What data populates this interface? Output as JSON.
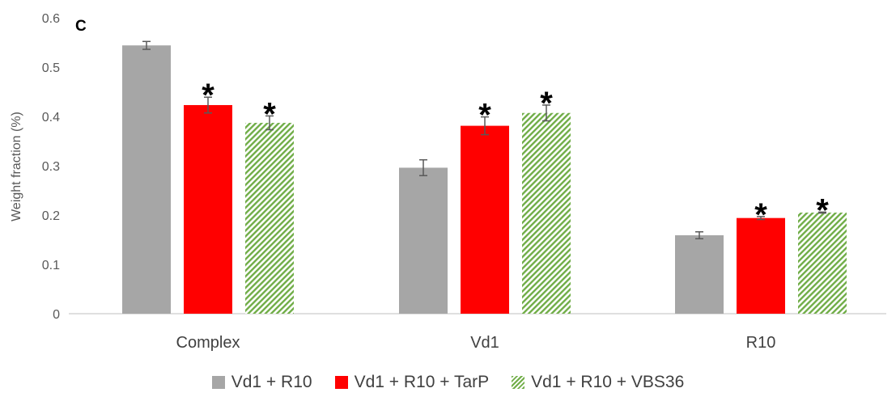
{
  "chart_data": {
    "type": "bar",
    "panel_label": "C",
    "ylabel": "Weight fraction (%)",
    "xlabel": "",
    "ylim": [
      0,
      0.6
    ],
    "yticks": [
      "0",
      "0.1",
      "0.2",
      "0.3",
      "0.4",
      "0.5",
      "0.6"
    ],
    "categories": [
      "Complex",
      "Vd1",
      "R10"
    ],
    "series": [
      {
        "name": "Vd1 + R10",
        "color": "#a6a6a6",
        "pattern": "solid",
        "values": [
          0.544,
          0.296,
          0.159
        ],
        "errors": [
          0.008,
          0.016,
          0.007
        ],
        "significant": [
          false,
          false,
          false
        ]
      },
      {
        "name": "Vd1 + R10 + TarP",
        "color": "#ff0000",
        "pattern": "solid",
        "values": [
          0.423,
          0.381,
          0.194
        ],
        "errors": [
          0.016,
          0.018,
          0.003
        ],
        "significant": [
          true,
          true,
          true
        ]
      },
      {
        "name": "Vd1 + R10 + VBS36",
        "color": "#70ad47",
        "pattern": "diagonal-hatch",
        "values": [
          0.387,
          0.407,
          0.205
        ],
        "errors": [
          0.014,
          0.016,
          0.001
        ],
        "significant": [
          true,
          true,
          true
        ]
      }
    ],
    "significance_marker": "*",
    "grid": false,
    "legend_position": "bottom"
  }
}
